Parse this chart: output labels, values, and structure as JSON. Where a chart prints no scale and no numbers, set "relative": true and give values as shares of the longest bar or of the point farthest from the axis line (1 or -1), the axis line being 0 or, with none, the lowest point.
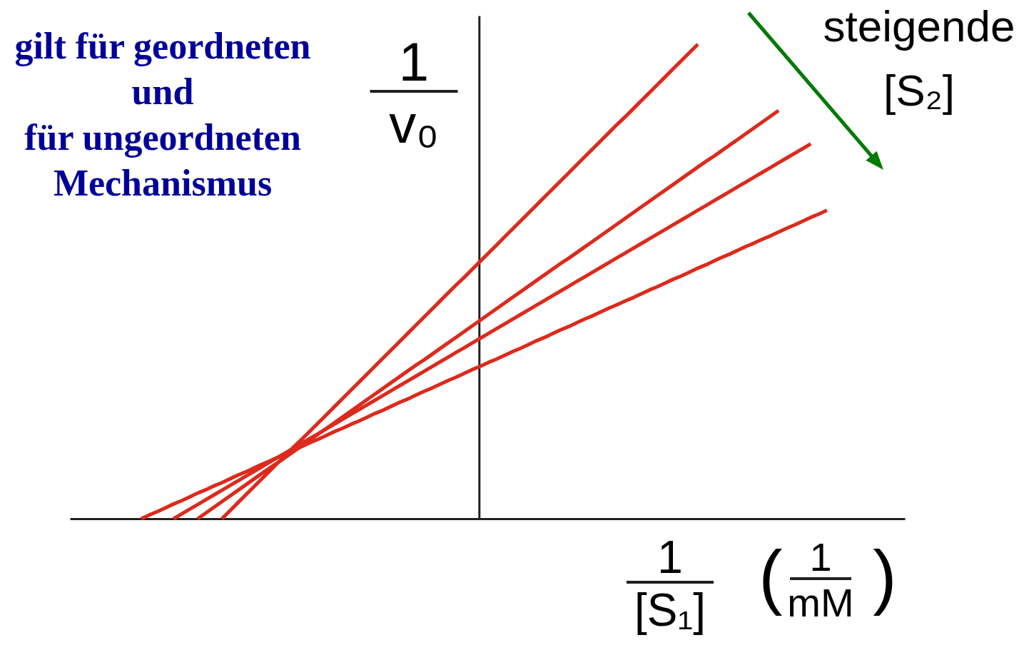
{
  "chart_data": {
    "type": "line",
    "relative": true,
    "line_style": "solid",
    "xlabel": "1\n[S₁] ( 1\nmM )",
    "ylabel": "1\nv₀",
    "annotations": [
      "gilt für geordneten\nund\nfür ungeordneten\nMechanismus",
      "steigende\n[S₂]"
    ],
    "categories": [
      null,
      null,
      null,
      null,
      null,
      null,
      null,
      null,
      null,
      null,
      null,
      null,
      null,
      null,
      null,
      null,
      null,
      null,
      null,
      null,
      null,
      null,
      null,
      null,
      null,
      null,
      null,
      null,
      null,
      null,
      null,
      null,
      null,
      null,
      null,
      null,
      null,
      null,
      null,
      null,
      null,
      null,
      null,
      null,
      null,
      null,
      null,
      null,
      null,
      null,
      null,
      null,
      null,
      null,
      null,
      null,
      null,
      null,
      null,
      null,
      null,
      null,
      null,
      null,
      null,
      null,
      null,
      null,
      null,
      null,
      null,
      null,
      null,
      null,
      null,
      null,
      null,
      null,
      null,
      null,
      null,
      null,
      null,
      null,
      null,
      null
    ],
    "series": [
      {
        "color": "#dc2a1c",
        "values": [
          null,
          null,
          null,
          null,
          null,
          null,
          null,
          null,
          null,
          null,
          0,
          0.017,
          0.034,
          0.051,
          0.068,
          0.085,
          0.102,
          0.119,
          0.136,
          0.153,
          0.169,
          0.186,
          0.203,
          0.22,
          0.237,
          0.254,
          0.271,
          0.288,
          0.305,
          0.322,
          0.339,
          0.356,
          0.373,
          0.39,
          0.407,
          0.424,
          0.441,
          0.458,
          0.475,
          0.492,
          0.508,
          0.525,
          0.542,
          0.559,
          0.576,
          0.593,
          0.61,
          0.627,
          0.644,
          0.661,
          0.678,
          0.695,
          0.712,
          0.729,
          0.746,
          0.763,
          0.78,
          0.797,
          0.814,
          0.831,
          0.847,
          0.864,
          0.881,
          0.898,
          0.915,
          0.932,
          0.949,
          0.966,
          0.983,
          1,
          null,
          null,
          null,
          null,
          null,
          null,
          null,
          null,
          null,
          null,
          null,
          null,
          null,
          null,
          null,
          null
        ]
      },
      {
        "color": "#dc2a1c",
        "values": [
          null,
          null,
          null,
          null,
          null,
          null,
          null,
          0,
          0.012,
          0.024,
          0.036,
          0.048,
          0.06,
          0.072,
          0.084,
          0.096,
          0.108,
          0.119,
          0.131,
          0.143,
          0.155,
          0.167,
          0.179,
          0.191,
          0.203,
          0.215,
          0.227,
          0.239,
          0.251,
          0.263,
          0.275,
          0.287,
          0.299,
          0.311,
          0.323,
          0.334,
          0.346,
          0.358,
          0.37,
          0.382,
          0.394,
          0.406,
          0.418,
          0.43,
          0.442,
          0.454,
          0.466,
          0.478,
          0.49,
          0.502,
          0.514,
          0.526,
          0.538,
          0.549,
          0.561,
          0.573,
          0.585,
          0.597,
          0.609,
          0.621,
          0.633,
          0.645,
          0.657,
          0.669,
          0.681,
          0.693,
          0.705,
          0.717,
          0.729,
          0.741,
          0.753,
          0.764,
          0.776,
          0.788,
          0.8,
          0.812,
          0.824,
          0.836,
          0.848,
          0.86,
          null,
          null,
          null,
          null,
          null,
          null
        ]
      },
      {
        "color": "#dc2a1c",
        "values": [
          null,
          null,
          null,
          null,
          0,
          0.01,
          0.02,
          0.03,
          0.04,
          0.05,
          0.06,
          0.07,
          0.08,
          0.09,
          0.1,
          0.11,
          0.12,
          0.13,
          0.14,
          0.15,
          0.16,
          0.17,
          0.18,
          0.19,
          0.2,
          0.21,
          0.22,
          0.23,
          0.24,
          0.25,
          0.26,
          0.27,
          0.28,
          0.29,
          0.3,
          0.31,
          0.32,
          0.33,
          0.34,
          0.35,
          0.36,
          0.37,
          0.38,
          0.39,
          0.4,
          0.41,
          0.42,
          0.43,
          0.44,
          0.45,
          0.46,
          0.47,
          0.48,
          0.49,
          0.5,
          0.51,
          0.52,
          0.53,
          0.54,
          0.55,
          0.56,
          0.57,
          0.58,
          0.59,
          0.6,
          0.61,
          0.62,
          0.63,
          0.64,
          0.65,
          0.66,
          0.67,
          0.68,
          0.69,
          0.7,
          0.71,
          0.72,
          0.73,
          0.74,
          0.75,
          0.76,
          0.77,
          0.78,
          0.79,
          null,
          null
        ]
      },
      {
        "color": "#dc2a1c",
        "values": [
          0,
          0.008,
          0.015,
          0.023,
          0.031,
          0.038,
          0.046,
          0.054,
          0.061,
          0.069,
          0.076,
          0.084,
          0.092,
          0.099,
          0.107,
          0.115,
          0.122,
          0.13,
          0.138,
          0.145,
          0.153,
          0.161,
          0.168,
          0.176,
          0.184,
          0.191,
          0.199,
          0.206,
          0.214,
          0.222,
          0.229,
          0.237,
          0.245,
          0.252,
          0.26,
          0.268,
          0.275,
          0.283,
          0.291,
          0.298,
          0.306,
          0.314,
          0.321,
          0.329,
          0.336,
          0.344,
          0.352,
          0.359,
          0.367,
          0.375,
          0.382,
          0.39,
          0.398,
          0.405,
          0.413,
          0.421,
          0.428,
          0.436,
          0.444,
          0.451,
          0.459,
          0.466,
          0.474,
          0.482,
          0.489,
          0.497,
          0.505,
          0.512,
          0.52,
          0.528,
          0.535,
          0.543,
          0.551,
          0.558,
          0.566,
          0.574,
          0.581,
          0.589,
          0.596,
          0.604,
          0.612,
          0.619,
          0.627,
          0.635,
          0.642,
          0.65
        ]
      }
    ]
  }
}
